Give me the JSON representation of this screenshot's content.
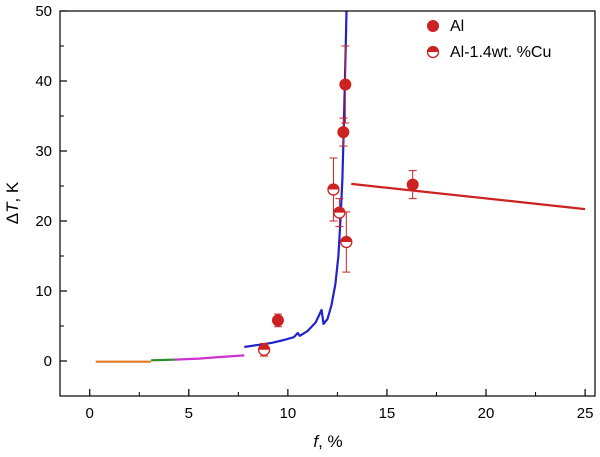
{
  "chart_data": {
    "type": "scatter",
    "xlim": [
      -1.5,
      25.5
    ],
    "ylim": [
      -5,
      50
    ],
    "x_ticks": [
      0,
      5,
      10,
      15,
      20,
      25
    ],
    "y_ticks": [
      0,
      10,
      20,
      30,
      40,
      50
    ],
    "x_tick_labels": [
      "0",
      "5",
      "10",
      "15",
      "20",
      "25"
    ],
    "y_tick_labels": [
      "0",
      "10",
      "20",
      "30",
      "40",
      "50"
    ],
    "xlabel": {
      "italic": "f",
      "rest": ", %"
    },
    "ylabel": {
      "delta": "Δ",
      "italic": "T",
      "rest": ", K"
    },
    "grid": false,
    "legend_position": "top-right",
    "series": [
      {
        "name": "Al",
        "marker": "filled-circle",
        "color": "#cc2222",
        "points": [
          {
            "x": 9.5,
            "y": 5.8,
            "err": 0.9
          },
          {
            "x": 12.8,
            "y": 32.7,
            "err": 2.0
          },
          {
            "x": 12.9,
            "y": 39.5,
            "err": 5.5
          },
          {
            "x": 16.3,
            "y": 25.2,
            "err": 2.0
          }
        ]
      },
      {
        "name": "Al-1.4wt. %Cu",
        "marker": "half-filled-circle",
        "color": "#cc2222",
        "points": [
          {
            "x": 8.8,
            "y": 1.6,
            "err": 0.9
          },
          {
            "x": 12.3,
            "y": 24.5,
            "err": 4.5
          },
          {
            "x": 12.6,
            "y": 21.2,
            "err": 2.0
          },
          {
            "x": 12.95,
            "y": 17.0,
            "err": 4.3
          }
        ]
      }
    ],
    "lines": [
      {
        "color": "#e07a1f",
        "points": [
          [
            0.3,
            -0.1
          ],
          [
            3.1,
            -0.1
          ]
        ]
      },
      {
        "color": "#2e8b2e",
        "points": [
          [
            3.1,
            0.1
          ],
          [
            4.3,
            0.2
          ]
        ]
      },
      {
        "color": "#cc33cc",
        "points": [
          [
            4.3,
            0.2
          ],
          [
            5.5,
            0.35
          ],
          [
            6.5,
            0.55
          ],
          [
            7.8,
            0.8
          ]
        ]
      },
      {
        "color": "#2222cc",
        "points": [
          [
            7.8,
            2.0
          ],
          [
            8.5,
            2.3
          ],
          [
            9.2,
            2.6
          ],
          [
            9.8,
            3.0
          ],
          [
            10.3,
            3.4
          ],
          [
            10.5,
            4.0
          ],
          [
            10.6,
            3.6
          ],
          [
            11.0,
            4.3
          ],
          [
            11.4,
            5.5
          ],
          [
            11.7,
            7.3
          ],
          [
            11.8,
            5.3
          ],
          [
            12.0,
            6.0
          ],
          [
            12.2,
            8.0
          ],
          [
            12.4,
            11.0
          ],
          [
            12.55,
            15.0
          ],
          [
            12.65,
            20.0
          ],
          [
            12.75,
            26.0
          ],
          [
            12.82,
            33.0
          ],
          [
            12.88,
            40.0
          ],
          [
            12.93,
            46.0
          ],
          [
            12.96,
            50.0
          ]
        ]
      },
      {
        "color": "#cc2222",
        "points": [
          [
            13.2,
            25.3
          ],
          [
            25.0,
            21.7
          ]
        ]
      }
    ]
  }
}
